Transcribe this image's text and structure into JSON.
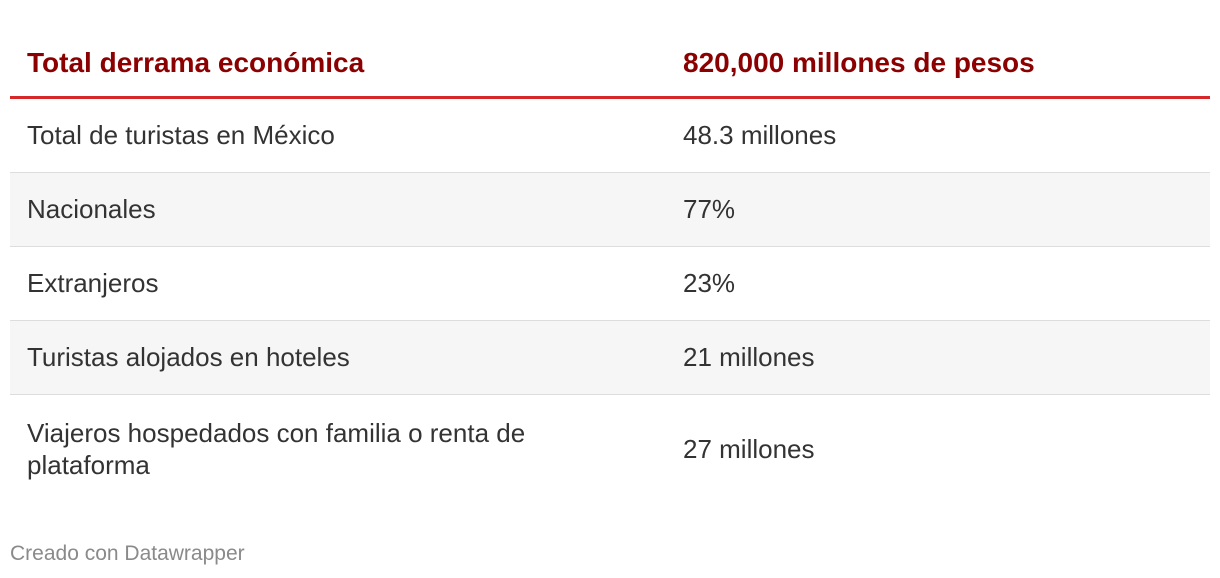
{
  "table": {
    "header": {
      "label": "Total derrama económica",
      "value": "820,000 millones de pesos"
    },
    "rows": [
      {
        "label": "Total de turistas en México",
        "value": "48.3 millones"
      },
      {
        "label": "Nacionales",
        "value": "77%"
      },
      {
        "label": "Extranjeros",
        "value": "23%"
      },
      {
        "label": "Turistas alojados en hoteles",
        "value": "21 millones"
      },
      {
        "label": "Viajeros hospedados con familia o renta de plataforma",
        "value": "27 millones"
      }
    ]
  },
  "chart_data": {
    "type": "table",
    "columns": [
      "Total derrama económica",
      "820,000 millones de pesos"
    ],
    "rows": [
      [
        "Total de turistas en México",
        "48.3 millones"
      ],
      [
        "Nacionales",
        "77%"
      ],
      [
        "Extranjeros",
        "23%"
      ],
      [
        "Turistas alojados en hoteles",
        "21 millones"
      ],
      [
        "Viajeros hospedados con familia o renta de plataforma",
        "27 millones"
      ]
    ]
  },
  "footer": {
    "credit": "Creado con Datawrapper"
  },
  "colors": {
    "header_text": "#8b0000",
    "header_rule": "#d62828",
    "body_text": "#333333",
    "shaded_row": "#f6f6f6",
    "footer_text": "#8a8a8a"
  }
}
